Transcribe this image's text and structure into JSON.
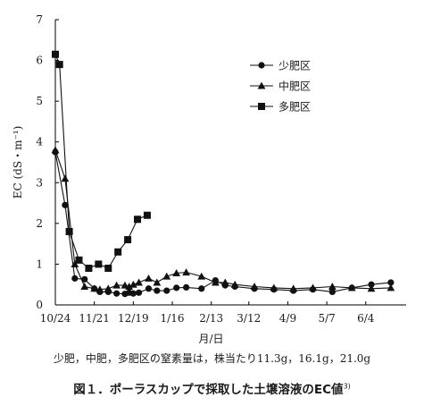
{
  "chart_data": {
    "type": "line",
    "ylabel": "EC (dS・m⁻¹)",
    "xlabel": "月/日",
    "ylim": [
      0,
      7
    ],
    "yticks": [
      0,
      1,
      2,
      3,
      4,
      5,
      6,
      7
    ],
    "x_tick_labels": [
      "10/24",
      "11/21",
      "12/19",
      "1/16",
      "2/13",
      "3/12",
      "4/9",
      "5/7",
      "6/4"
    ],
    "x_range_days": [
      0,
      252
    ],
    "legend_position": "top-right",
    "grid": false,
    "series": [
      {
        "name": "少肥区",
        "marker": "circle",
        "points": [
          {
            "x": "10/24",
            "y": 3.75
          },
          {
            "x": "10/31",
            "y": 2.45
          },
          {
            "x": "11/7",
            "y": 0.65
          },
          {
            "x": "11/14",
            "y": 0.63
          },
          {
            "x": "11/21",
            "y": 0.4
          },
          {
            "x": "11/25",
            "y": 0.32
          },
          {
            "x": "12/1",
            "y": 0.32
          },
          {
            "x": "12/7",
            "y": 0.28
          },
          {
            "x": "12/13",
            "y": 0.27
          },
          {
            "x": "12/16",
            "y": 0.3
          },
          {
            "x": "12/19",
            "y": 0.28
          },
          {
            "x": "12/23",
            "y": 0.3
          },
          {
            "x": "12/30",
            "y": 0.4
          },
          {
            "x": "1/5",
            "y": 0.35
          },
          {
            "x": "1/12",
            "y": 0.35
          },
          {
            "x": "1/19",
            "y": 0.42
          },
          {
            "x": "1/26",
            "y": 0.43
          },
          {
            "x": "2/6",
            "y": 0.4
          },
          {
            "x": "2/16",
            "y": 0.6
          },
          {
            "x": "2/23",
            "y": 0.48
          },
          {
            "x": "3/2",
            "y": 0.45
          },
          {
            "x": "3/16",
            "y": 0.4
          },
          {
            "x": "3/30",
            "y": 0.38
          },
          {
            "x": "4/13",
            "y": 0.35
          },
          {
            "x": "4/27",
            "y": 0.38
          },
          {
            "x": "5/11",
            "y": 0.32
          },
          {
            "x": "5/25",
            "y": 0.42
          },
          {
            "x": "6/8",
            "y": 0.5
          },
          {
            "x": "6/22",
            "y": 0.55
          }
        ]
      },
      {
        "name": "中肥区",
        "marker": "triangle",
        "points": [
          {
            "x": "10/24",
            "y": 3.8
          },
          {
            "x": "10/31",
            "y": 3.1
          },
          {
            "x": "11/7",
            "y": 1.0
          },
          {
            "x": "11/14",
            "y": 0.45
          },
          {
            "x": "11/21",
            "y": 0.4
          },
          {
            "x": "11/25",
            "y": 0.38
          },
          {
            "x": "12/1",
            "y": 0.4
          },
          {
            "x": "12/7",
            "y": 0.48
          },
          {
            "x": "12/13",
            "y": 0.48
          },
          {
            "x": "12/16",
            "y": 0.45
          },
          {
            "x": "12/19",
            "y": 0.5
          },
          {
            "x": "12/23",
            "y": 0.55
          },
          {
            "x": "12/30",
            "y": 0.65
          },
          {
            "x": "1/5",
            "y": 0.55
          },
          {
            "x": "1/12",
            "y": 0.7
          },
          {
            "x": "1/19",
            "y": 0.78
          },
          {
            "x": "1/26",
            "y": 0.8
          },
          {
            "x": "2/6",
            "y": 0.7
          },
          {
            "x": "2/16",
            "y": 0.55
          },
          {
            "x": "2/23",
            "y": 0.55
          },
          {
            "x": "3/2",
            "y": 0.5
          },
          {
            "x": "3/16",
            "y": 0.45
          },
          {
            "x": "3/30",
            "y": 0.42
          },
          {
            "x": "4/13",
            "y": 0.4
          },
          {
            "x": "4/27",
            "y": 0.42
          },
          {
            "x": "5/11",
            "y": 0.45
          },
          {
            "x": "5/25",
            "y": 0.42
          },
          {
            "x": "6/8",
            "y": 0.4
          },
          {
            "x": "6/22",
            "y": 0.42
          }
        ]
      },
      {
        "name": "多肥区",
        "marker": "square",
        "points": [
          {
            "x": "10/24",
            "y": 6.15
          },
          {
            "x": "10/27",
            "y": 5.9
          },
          {
            "x": "11/3",
            "y": 1.8
          },
          {
            "x": "11/10",
            "y": 1.1
          },
          {
            "x": "11/17",
            "y": 0.9
          },
          {
            "x": "11/24",
            "y": 1.0
          },
          {
            "x": "12/1",
            "y": 0.9
          },
          {
            "x": "12/8",
            "y": 1.3
          },
          {
            "x": "12/15",
            "y": 1.6
          },
          {
            "x": "12/22",
            "y": 2.1
          },
          {
            "x": "12/29",
            "y": 2.2
          }
        ]
      }
    ]
  },
  "note": "少肥，中肥，多肥区の窒素量は，株当たり11.3g，16.1g，21.0g",
  "caption": {
    "text": "図１．ポーラスカップで採取した土壌溶液のEC値",
    "ref": "3)"
  }
}
